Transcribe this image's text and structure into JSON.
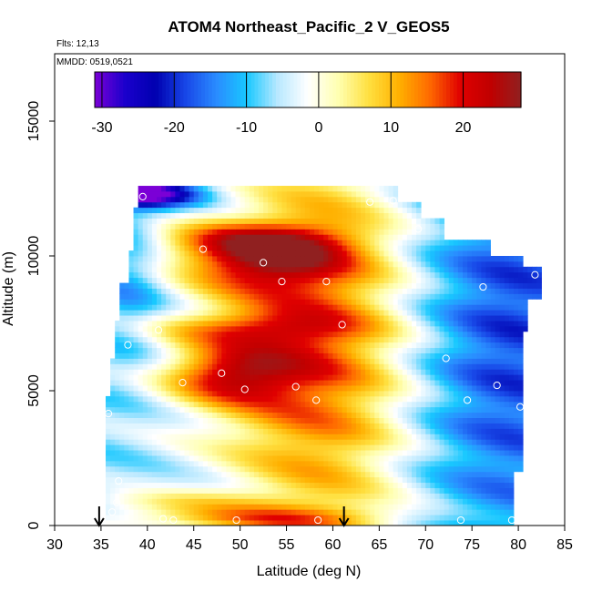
{
  "chart_data": {
    "type": "heatmap",
    "title": "ATOM4 Northeast_Pacific_2 V_GEOS5",
    "subtitle_flights": "Flts: 12,13",
    "subtitle_dates": "MMDD: 0519,0521",
    "xlabel": "Latitude (deg N)",
    "ylabel": "Altitude (m)",
    "xlim": [
      30,
      85
    ],
    "ylim": [
      0,
      17500
    ],
    "x_ticks": [
      "30",
      "35",
      "40",
      "45",
      "50",
      "55",
      "60",
      "65",
      "70",
      "75",
      "80",
      "85"
    ],
    "y_ticks": [
      "0",
      "5000",
      "10000",
      "15000"
    ],
    "colorbar": {
      "range": [
        -31,
        28
      ],
      "tick_values": [
        -30,
        -20,
        -10,
        0,
        10,
        20
      ],
      "tick_labels": [
        "-30",
        "-20",
        "-10",
        "0",
        "10",
        "20"
      ],
      "colors": [
        "#7b00d6",
        "#1a00cc",
        "#0000b0",
        "#1848e8",
        "#2a8cff",
        "#18c8ff",
        "#b8e8ff",
        "#ffffff",
        "#ffffb0",
        "#ffe040",
        "#ffb000",
        "#ff6a00",
        "#e00000",
        "#c00000",
        "#902020"
      ]
    },
    "arrows_latitude": [
      34.8,
      61.2
    ],
    "measurement_points": [
      {
        "lat": 39.5,
        "alt": 12200
      },
      {
        "lat": 64.0,
        "alt": 12000
      },
      {
        "lat": 66.5,
        "alt": 12050
      },
      {
        "lat": 69.2,
        "alt": 11000
      },
      {
        "lat": 46.0,
        "alt": 10250
      },
      {
        "lat": 52.5,
        "alt": 9750
      },
      {
        "lat": 54.5,
        "alt": 9050
      },
      {
        "lat": 59.3,
        "alt": 9050
      },
      {
        "lat": 76.2,
        "alt": 8850
      },
      {
        "lat": 81.8,
        "alt": 9300
      },
      {
        "lat": 41.2,
        "alt": 7250
      },
      {
        "lat": 61.0,
        "alt": 7450
      },
      {
        "lat": 37.9,
        "alt": 6700
      },
      {
        "lat": 72.2,
        "alt": 6200
      },
      {
        "lat": 48.0,
        "alt": 5650
      },
      {
        "lat": 43.8,
        "alt": 5300
      },
      {
        "lat": 50.5,
        "alt": 5050
      },
      {
        "lat": 56.0,
        "alt": 5150
      },
      {
        "lat": 58.2,
        "alt": 4650
      },
      {
        "lat": 74.5,
        "alt": 4650
      },
      {
        "lat": 77.7,
        "alt": 5200
      },
      {
        "lat": 80.2,
        "alt": 4400
      },
      {
        "lat": 35.8,
        "alt": 4150
      },
      {
        "lat": 36.9,
        "alt": 1650
      },
      {
        "lat": 36.7,
        "alt": 850
      },
      {
        "lat": 36.2,
        "alt": 500
      },
      {
        "lat": 41.7,
        "alt": 250
      },
      {
        "lat": 42.8,
        "alt": 200
      },
      {
        "lat": 49.6,
        "alt": 200
      },
      {
        "lat": 58.4,
        "alt": 200
      },
      {
        "lat": 73.8,
        "alt": 200
      },
      {
        "lat": 79.3,
        "alt": 200
      }
    ]
  }
}
